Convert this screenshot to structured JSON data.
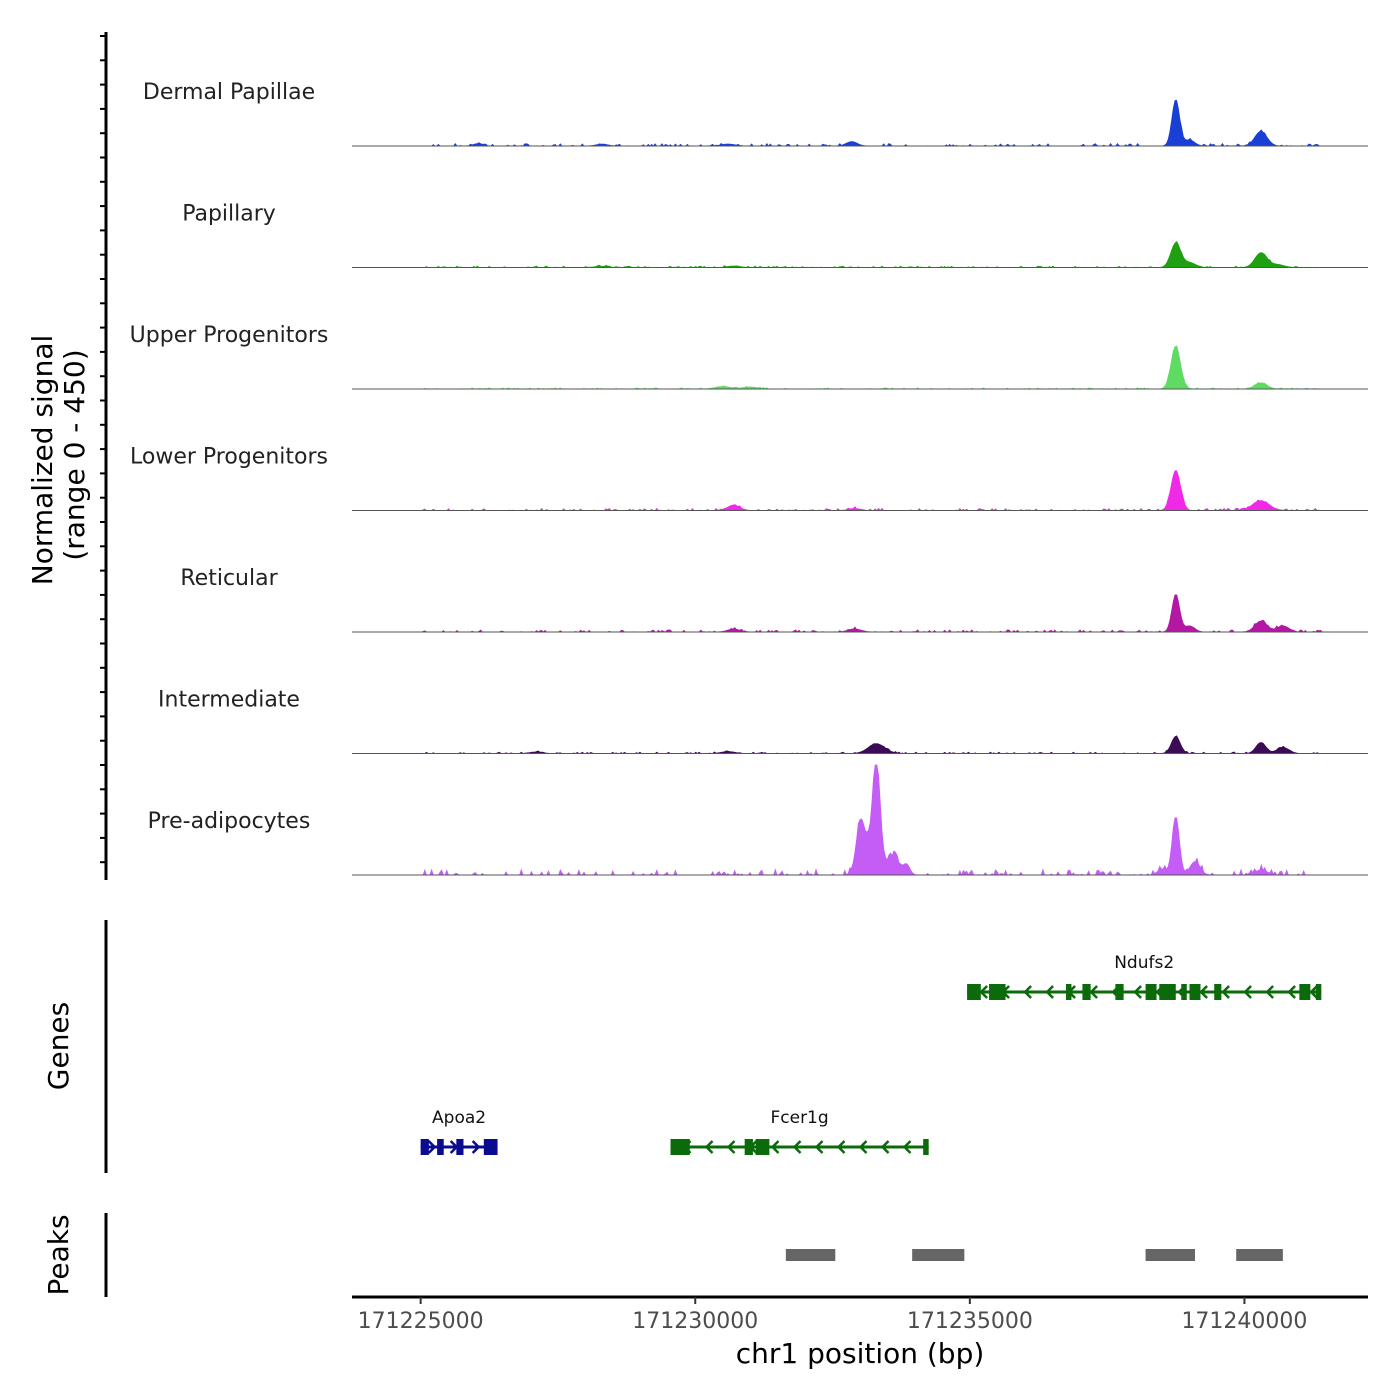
{
  "chart_data": {
    "type": "genome-coverage",
    "y_axis_title_line1": "Normalized signal",
    "y_axis_title_line2": "(range 0 - 450)",
    "y_range": [
      0,
      450
    ],
    "x_axis_title": "chr1 position (bp)",
    "x_range": [
      171223750,
      171242250
    ],
    "x_ticks": [
      171225000,
      171230000,
      171235000,
      171240000
    ],
    "x_tick_labels": [
      "171225000",
      "171230000",
      "171235000",
      "171240000"
    ],
    "genes_title": "Genes",
    "peaks_title": "Peaks",
    "tracks": [
      {
        "name": "Dermal Papillae",
        "color": "#1a3fd4",
        "peaks": [
          [
            171238750,
            190,
            70
          ],
          [
            171239000,
            25,
            90
          ],
          [
            171240300,
            60,
            110
          ],
          [
            171232850,
            18,
            100
          ],
          [
            171226050,
            10,
            90
          ],
          [
            171228300,
            8,
            100
          ],
          [
            171230600,
            8,
            120
          ]
        ],
        "noise": 7
      },
      {
        "name": "Papillary",
        "color": "#1fa011",
        "peaks": [
          [
            171238750,
            100,
            90
          ],
          [
            171239000,
            20,
            110
          ],
          [
            171240300,
            60,
            110
          ],
          [
            171240600,
            12,
            120
          ],
          [
            171230700,
            6,
            120
          ],
          [
            171228300,
            5,
            120
          ]
        ],
        "noise": 4
      },
      {
        "name": "Upper Progenitors",
        "color": "#5fdb63",
        "peaks": [
          [
            171238750,
            175,
            85
          ],
          [
            171240300,
            25,
            110
          ],
          [
            171230500,
            10,
            140
          ],
          [
            171231000,
            8,
            140
          ]
        ],
        "noise": 3
      },
      {
        "name": "Lower Progenitors",
        "color": "#f029e9",
        "peaks": [
          [
            171238750,
            165,
            85
          ],
          [
            171240300,
            40,
            150
          ],
          [
            171230700,
            22,
            110
          ],
          [
            171232900,
            8,
            110
          ]
        ],
        "noise": 6
      },
      {
        "name": "Reticular",
        "color": "#b317a3",
        "peaks": [
          [
            171238750,
            155,
            70
          ],
          [
            171239000,
            25,
            90
          ],
          [
            171240300,
            45,
            110
          ],
          [
            171240700,
            25,
            110
          ],
          [
            171230700,
            12,
            110
          ],
          [
            171232900,
            12,
            120
          ]
        ],
        "noise": 6
      },
      {
        "name": "Intermediate",
        "color": "#3b0b57",
        "peaks": [
          [
            171238750,
            70,
            80
          ],
          [
            171240300,
            45,
            90
          ],
          [
            171240700,
            25,
            110
          ],
          [
            171233300,
            40,
            150
          ],
          [
            171230600,
            8,
            120
          ],
          [
            171227100,
            6,
            120
          ]
        ],
        "noise": 4
      },
      {
        "name": "Pre-adipocytes",
        "color": "#c45df5",
        "peaks": [
          [
            171233300,
            450,
            70
          ],
          [
            171233100,
            120,
            120
          ],
          [
            171233000,
            140,
            70
          ],
          [
            171233600,
            80,
            110
          ],
          [
            171233850,
            40,
            60
          ],
          [
            171238750,
            240,
            65
          ],
          [
            171239100,
            55,
            90
          ],
          [
            171238500,
            25,
            80
          ],
          [
            171240300,
            20,
            120
          ]
        ],
        "noise": 16
      }
    ],
    "genes": [
      {
        "name": "Apoa2",
        "start": 171225000,
        "end": 171226400,
        "strand": "+",
        "color": "#0b0b8f",
        "exons": [
          [
            171225000,
            171225150
          ],
          [
            171225300,
            171225420
          ],
          [
            171225650,
            171225780
          ],
          [
            171226150,
            171226400
          ]
        ],
        "row": 2
      },
      {
        "name": "Fcer1g",
        "start": 171229550,
        "end": 171234250,
        "strand": "-",
        "color": "#0b6b0b",
        "exons": [
          [
            171229550,
            171229900
          ],
          [
            171230900,
            171231050
          ],
          [
            171231100,
            171231350
          ],
          [
            171234150,
            171234250
          ]
        ],
        "row": 2
      },
      {
        "name": "Ndufs2",
        "start": 171234950,
        "end": 171241400,
        "strand": "-",
        "color": "#0b6b0b",
        "exons": [
          [
            171234950,
            171235200
          ],
          [
            171235350,
            171235650
          ],
          [
            171236750,
            171236850
          ],
          [
            171237050,
            171237200
          ],
          [
            171237650,
            171237800
          ],
          [
            171238200,
            171238400
          ],
          [
            171238450,
            171238750
          ],
          [
            171238850,
            171238950
          ],
          [
            171239000,
            171239200
          ],
          [
            171239450,
            171239580
          ],
          [
            171241000,
            171241200
          ],
          [
            171241300,
            171241400
          ]
        ],
        "row": 1
      }
    ],
    "peak_regions": [
      [
        171231650,
        171232550
      ],
      [
        171233950,
        171234900
      ],
      [
        171238200,
        171239100
      ],
      [
        171239850,
        171240700
      ]
    ],
    "peak_color": "#666666"
  }
}
